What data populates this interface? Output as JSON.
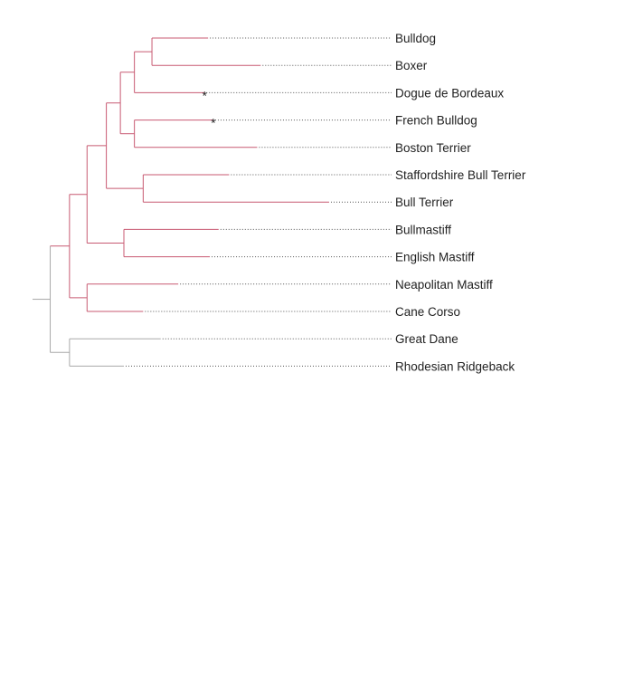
{
  "colors": {
    "root": "#a8a8a8",
    "bulldog_clade": "#c85a72",
    "mountain_dog_clade": "#2f3d70",
    "retriever_clade": "#4aa24a",
    "leader": "#555555"
  },
  "marker_symbol": "*",
  "tree": {
    "children": [
      {
        "color": "bulldog_clade",
        "children": [
          {
            "children": [
              {
                "children": [
                  {
                    "children": [
                      {
                        "children": [
                          {
                            "children": [
                              {
                                "name": "Bulldog",
                                "length": 3.2
                              },
                              {
                                "name": "Boxer",
                                "length": 6.2
                              }
                            ],
                            "length": 1.0
                          },
                          {
                            "name": "Dogue de Bordeaux",
                            "length": 4.0,
                            "marker": true
                          }
                        ],
                        "length": 0.8
                      },
                      {
                        "children": [
                          {
                            "name": "French Bulldog",
                            "length": 4.5,
                            "marker": true
                          },
                          {
                            "name": "Boston Terrier",
                            "length": 7.0
                          }
                        ],
                        "length": 0.8
                      }
                    ],
                    "length": 0.8
                  },
                  {
                    "children": [
                      {
                        "name": "Staffordshire Bull Terrier",
                        "length": 4.9
                      },
                      {
                        "name": "Bull Terrier",
                        "length": 10.6
                      }
                    ],
                    "length": 2.1
                  }
                ],
                "length": 1.1
              },
              {
                "children": [
                  {
                    "name": "Bullmastiff",
                    "length": 5.4
                  },
                  {
                    "name": "English Mastiff",
                    "length": 4.9
                  }
                ],
                "length": 2.1
              }
            ],
            "length": 1.0
          },
          {
            "children": [
              {
                "name": "Neapolitan Mastiff",
                "length": 5.2
              },
              {
                "name": "Cane Corso",
                "length": 3.2
              }
            ],
            "length": 1.0
          }
        ],
        "length": 1.1
      },
      {
        "children": [
          {
            "name": "Great Dane",
            "length": 5.2
          },
          {
            "name": "Rhodesian Ridgeback",
            "length": 3.1
          }
        ],
        "length": 1.1
      }
    ],
    "length": 0.8
  }
}
